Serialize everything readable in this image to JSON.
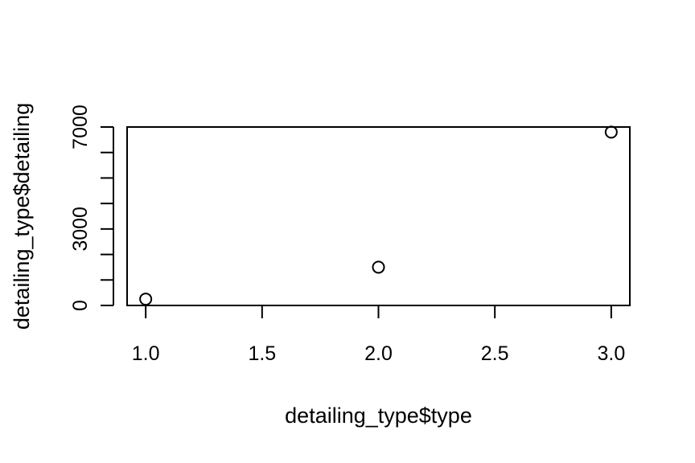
{
  "chart_data": {
    "type": "scatter",
    "title": "",
    "xlabel": "detailing_type$type",
    "ylabel": "detailing_type$detailing",
    "xlim": [
      0.92,
      3.08
    ],
    "ylim": [
      0,
      7000
    ],
    "x_ticks": [
      1.0,
      1.5,
      2.0,
      2.5,
      3.0
    ],
    "x_tick_labels": [
      "1.0",
      "1.5",
      "2.0",
      "2.5",
      "3.0"
    ],
    "y_ticks_major": [
      0,
      3000,
      7000
    ],
    "y_tick_labels": [
      "0",
      "3000",
      "7000"
    ],
    "y_ticks_minor": [
      1000,
      2000,
      4000,
      5000,
      6000
    ],
    "grid": false,
    "legend": "none",
    "points": [
      {
        "x": 1,
        "y": 250
      },
      {
        "x": 2,
        "y": 1500
      },
      {
        "x": 3,
        "y": 6800
      }
    ],
    "marker": "open-circle",
    "colors": {
      "marker": "#000000",
      "axis": "#000000"
    }
  }
}
